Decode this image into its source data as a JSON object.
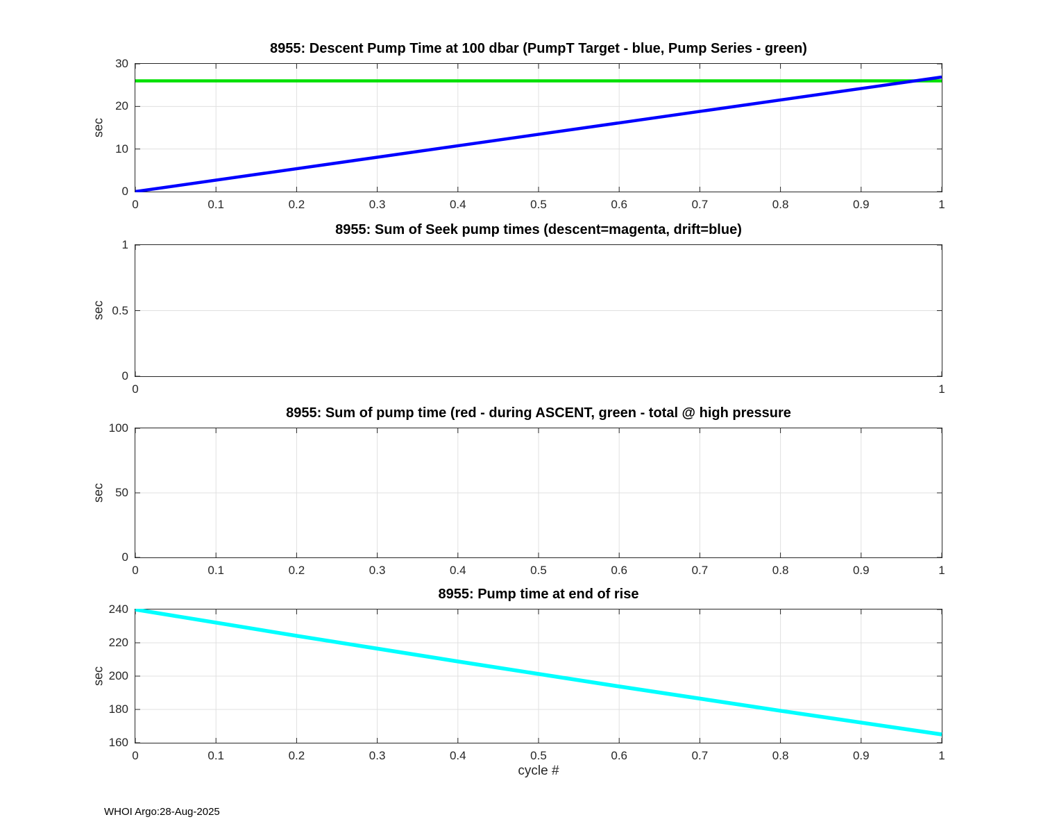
{
  "page": {
    "background": "#ffffff",
    "footer": "WHOI Argo:28-Aug-2025"
  },
  "colors": {
    "axis": "#262626",
    "grid": "#e0e0e0",
    "blue": "#0000ff",
    "green": "#00e000",
    "cyan": "#00ffff"
  },
  "chart_data": [
    {
      "type": "line",
      "title": "8955: Descent Pump Time at 100 dbar (PumpT Target - blue, Pump Series - green)",
      "xlabel": "",
      "ylabel": "sec",
      "xlim": [
        0,
        1
      ],
      "ylim": [
        0,
        30
      ],
      "xticks": [
        0,
        0.1,
        0.2,
        0.3,
        0.4,
        0.5,
        0.6,
        0.7,
        0.8,
        0.9,
        1
      ],
      "xtick_labels": [
        "0",
        "0.1",
        "0.2",
        "0.3",
        "0.4",
        "0.5",
        "0.6",
        "0.7",
        "0.8",
        "0.9",
        "1"
      ],
      "yticks": [
        0,
        10,
        20,
        30
      ],
      "ytick_labels": [
        "0",
        "10",
        "20",
        "30"
      ],
      "grid": true,
      "legend_position": "in-title",
      "series": [
        {
          "name": "Pump Series (green)",
          "color": "#00e000",
          "width": 4.5,
          "x": [
            0,
            1
          ],
          "y": [
            26,
            26
          ]
        },
        {
          "name": "PumpT Target (blue)",
          "color": "#0000ff",
          "width": 4.5,
          "x": [
            0,
            1
          ],
          "y": [
            0,
            26.9
          ]
        }
      ]
    },
    {
      "type": "line",
      "title": "8955: Sum of Seek pump times (descent=magenta, drift=blue)",
      "xlabel": "",
      "ylabel": "sec",
      "xlim": [
        0,
        1
      ],
      "ylim": [
        0,
        1
      ],
      "xticks": [
        0,
        1
      ],
      "xtick_labels": [
        "0",
        "1"
      ],
      "yticks": [
        0,
        0.5,
        1
      ],
      "ytick_labels": [
        "0",
        "0.5",
        "1"
      ],
      "grid": true,
      "legend_position": "in-title",
      "series": []
    },
    {
      "type": "line",
      "title": "8955: Sum of pump time (red - during ASCENT, green - total @ high pressure",
      "xlabel": "",
      "ylabel": "sec",
      "xlim": [
        0,
        1
      ],
      "ylim": [
        0,
        100
      ],
      "xticks": [
        0,
        0.1,
        0.2,
        0.3,
        0.4,
        0.5,
        0.6,
        0.7,
        0.8,
        0.9,
        1
      ],
      "xtick_labels": [
        "0",
        "0.1",
        "0.2",
        "0.3",
        "0.4",
        "0.5",
        "0.6",
        "0.7",
        "0.8",
        "0.9",
        "1"
      ],
      "yticks": [
        0,
        50,
        100
      ],
      "ytick_labels": [
        "0",
        "50",
        "100"
      ],
      "grid": true,
      "legend_position": "in-title",
      "series": []
    },
    {
      "type": "line",
      "title": "8955: Pump time at end of rise",
      "xlabel": "cycle #",
      "ylabel": "sec",
      "xlim": [
        0,
        1
      ],
      "ylim": [
        160,
        240
      ],
      "xticks": [
        0,
        0.1,
        0.2,
        0.3,
        0.4,
        0.5,
        0.6,
        0.7,
        0.8,
        0.9,
        1
      ],
      "xtick_labels": [
        "0",
        "0.1",
        "0.2",
        "0.3",
        "0.4",
        "0.5",
        "0.6",
        "0.7",
        "0.8",
        "0.9",
        "1"
      ],
      "yticks": [
        160,
        180,
        200,
        220,
        240
      ],
      "ytick_labels": [
        "160",
        "180",
        "200",
        "220",
        "240"
      ],
      "grid": true,
      "legend_position": "none",
      "series": [
        {
          "name": "Pump time at end of rise (cyan)",
          "color": "#00ffff",
          "width": 5.5,
          "x": [
            0,
            0.1,
            0.2,
            0.3,
            0.4,
            0.5,
            0.6,
            0.7,
            0.8,
            0.9,
            1
          ],
          "y": [
            240,
            232.1,
            224.2,
            216.5,
            208.8,
            201.3,
            193.8,
            186.5,
            179.2,
            172.1,
            165
          ]
        }
      ]
    }
  ]
}
